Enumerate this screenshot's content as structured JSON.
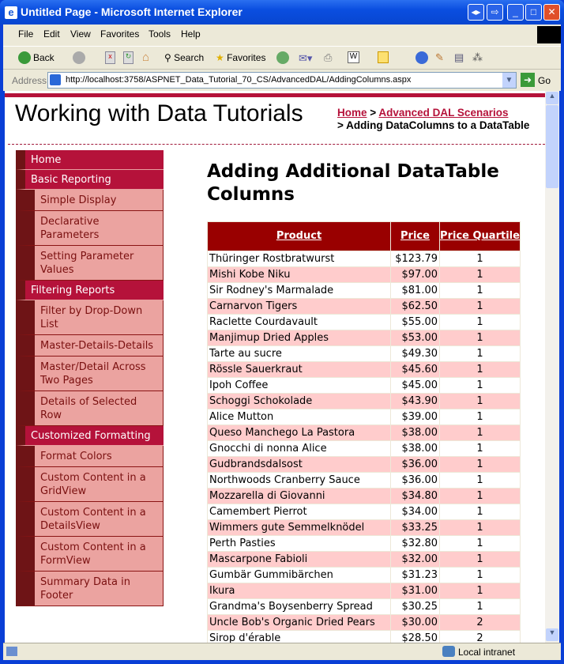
{
  "window": {
    "title": "Untitled Page - Microsoft Internet Explorer"
  },
  "menu": [
    "File",
    "Edit",
    "View",
    "Favorites",
    "Tools",
    "Help"
  ],
  "toolbar": {
    "back": "Back",
    "search": "Search",
    "favorites": "Favorites"
  },
  "address": {
    "label": "Address",
    "url": "http://localhost:3758/ASPNET_Data_Tutorial_70_CS/AdvancedDAL/AddingColumns.aspx",
    "go": "Go"
  },
  "header": {
    "title": "Working with Data Tutorials",
    "crumb_home": "Home",
    "crumb_sep": " > ",
    "crumb_section": "Advanced DAL Scenarios",
    "crumb_current": "> Adding DataColumns to a DataTable"
  },
  "sidebar": [
    {
      "label": "Home",
      "level": "top"
    },
    {
      "label": "Basic Reporting",
      "level": "top"
    },
    {
      "label": "Simple Display",
      "level": "sub"
    },
    {
      "label": "Declarative Parameters",
      "level": "sub"
    },
    {
      "label": "Setting Parameter Values",
      "level": "sub"
    },
    {
      "label": "Filtering Reports",
      "level": "top"
    },
    {
      "label": "Filter by Drop-Down List",
      "level": "sub"
    },
    {
      "label": "Master-Details-Details",
      "level": "sub"
    },
    {
      "label": "Master/Detail Across Two Pages",
      "level": "sub"
    },
    {
      "label": "Details of Selected Row",
      "level": "sub"
    },
    {
      "label": "Customized Formatting",
      "level": "top"
    },
    {
      "label": "Format Colors",
      "level": "sub"
    },
    {
      "label": "Custom Content in a GridView",
      "level": "sub"
    },
    {
      "label": "Custom Content in a DetailsView",
      "level": "sub"
    },
    {
      "label": "Custom Content in a FormView",
      "level": "sub"
    },
    {
      "label": "Summary Data in Footer",
      "level": "sub"
    }
  ],
  "main": {
    "heading": "Adding Additional DataTable Columns",
    "columns": [
      "Product",
      "Price",
      "Price Quartile"
    ],
    "rows": [
      [
        "Thüringer Rostbratwurst",
        "$123.79",
        "1"
      ],
      [
        "Mishi Kobe Niku",
        "$97.00",
        "1"
      ],
      [
        "Sir Rodney's Marmalade",
        "$81.00",
        "1"
      ],
      [
        "Carnarvon Tigers",
        "$62.50",
        "1"
      ],
      [
        "Raclette Courdavault",
        "$55.00",
        "1"
      ],
      [
        "Manjimup Dried Apples",
        "$53.00",
        "1"
      ],
      [
        "Tarte au sucre",
        "$49.30",
        "1"
      ],
      [
        "Rössle Sauerkraut",
        "$45.60",
        "1"
      ],
      [
        "Ipoh Coffee",
        "$45.00",
        "1"
      ],
      [
        "Schoggi Schokolade",
        "$43.90",
        "1"
      ],
      [
        "Alice Mutton",
        "$39.00",
        "1"
      ],
      [
        "Queso Manchego La Pastora",
        "$38.00",
        "1"
      ],
      [
        "Gnocchi di nonna Alice",
        "$38.00",
        "1"
      ],
      [
        "Gudbrandsdalsost",
        "$36.00",
        "1"
      ],
      [
        "Northwoods Cranberry Sauce",
        "$36.00",
        "1"
      ],
      [
        "Mozzarella di Giovanni",
        "$34.80",
        "1"
      ],
      [
        "Camembert Pierrot",
        "$34.00",
        "1"
      ],
      [
        "Wimmers gute Semmelknödel",
        "$33.25",
        "1"
      ],
      [
        "Perth Pasties",
        "$32.80",
        "1"
      ],
      [
        "Mascarpone Fabioli",
        "$32.00",
        "1"
      ],
      [
        "Gumbär Gummibärchen",
        "$31.23",
        "1"
      ],
      [
        "Ikura",
        "$31.00",
        "1"
      ],
      [
        "Grandma's Boysenberry Spread",
        "$30.25",
        "1"
      ],
      [
        "Uncle Bob's Organic Dried Pears",
        "$30.00",
        "2"
      ],
      [
        "Sirop d'érable",
        "$28.50",
        "2"
      ]
    ]
  },
  "status": {
    "zone": "Local intranet"
  }
}
